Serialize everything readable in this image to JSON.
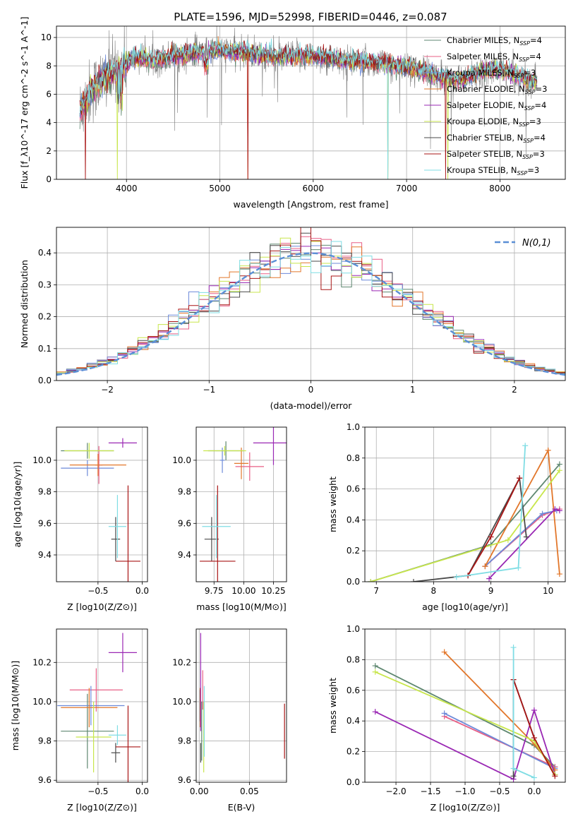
{
  "figure": {
    "title": "PLATE=1596, MJD=52998, FIBERID=0446, z=0.087"
  },
  "colors": {
    "Chabrier MILES": "#5e8770",
    "Salpeter MILES": "#e85f86",
    "Kroupa MILES": "#6d8ad9",
    "Chabrier ELODIE": "#e2772b",
    "Salpeter ELODIE": "#9a28b4",
    "Kroupa ELODIE": "#c8e64c",
    "Chabrier STELIB": "#4a4a4a",
    "Salpeter STELIB": "#a81515",
    "Kroupa STELIB": "#7fdde4",
    "gauss": "#5b8fd6",
    "grey_data": "#7f7f7f"
  },
  "chart_data": [
    {
      "id": "spectrum",
      "type": "line",
      "xlabel": "wavelength [Angstrom, rest frame]",
      "ylabel": "Flux [f_λ10^-17 erg cm^-2 s^-1 A^-1]",
      "xlim": [
        3250,
        8700
      ],
      "ylim": [
        0,
        10.8
      ],
      "xticks": [
        4000,
        5000,
        6000,
        7000,
        8000
      ],
      "yticks": [
        0,
        2,
        4,
        6,
        8,
        10
      ],
      "legend_position": "top-right",
      "legend": [
        {
          "model": "Chabrier MILES",
          "nssp": "4"
        },
        {
          "model": "Salpeter MILES",
          "nssp": "4"
        },
        {
          "model": "Kroupa MILES",
          "nssp": "3"
        },
        {
          "model": "Chabrier ELODIE",
          "nssp": "3"
        },
        {
          "model": "Salpeter ELODIE",
          "nssp": "4"
        },
        {
          "model": "Kroupa ELODIE",
          "nssp": "3"
        },
        {
          "model": "Chabrier STELIB",
          "nssp": "4"
        },
        {
          "model": "Salpeter STELIB",
          "nssp": "3"
        },
        {
          "model": "Kroupa STELIB",
          "nssp": "3"
        }
      ],
      "continuum": {
        "x": [
          3500,
          3600,
          3700,
          3800,
          3900,
          4000,
          4100,
          4300,
          4500,
          4800,
          5000,
          5300,
          5600,
          6000,
          6300,
          6600,
          6800,
          7000,
          7200,
          7400,
          7600,
          7800,
          8000,
          8200,
          8400
        ],
        "y": [
          4.8,
          6.0,
          6.8,
          7.3,
          7.5,
          8.2,
          8.6,
          8.4,
          8.7,
          9.0,
          9.1,
          8.9,
          8.6,
          8.7,
          8.4,
          8.3,
          8.1,
          7.9,
          7.6,
          7.2,
          7.0,
          7.6,
          7.7,
          7.3,
          6.8
        ]
      }
    },
    {
      "id": "residuals",
      "type": "line",
      "xlabel": "(data-model)/error",
      "ylabel": "Normed distribution",
      "xlim": [
        -2.5,
        2.5
      ],
      "ylim": [
        0,
        0.48
      ],
      "xticks": [
        -2,
        -1,
        0,
        1,
        2
      ],
      "yticks": [
        0.0,
        0.1,
        0.2,
        0.3,
        0.4
      ],
      "legend_position": "top-right",
      "legend_label": "N(0,1)",
      "bins": 50
    },
    {
      "id": "age_vs_Z",
      "type": "scatter",
      "xlabel": "Z [log10(Z/Z⊙)]",
      "ylabel": "age  [log10(age/yr)]",
      "xlim": [
        -0.97,
        0.06
      ],
      "ylim": [
        9.23,
        10.21
      ],
      "xticks": [
        -0.5,
        0.0
      ],
      "yticks": [
        9.4,
        9.6,
        9.8,
        10.0
      ],
      "points": [
        {
          "model": "Chabrier MILES",
          "x": -0.62,
          "y": 10.06,
          "xerr": 0.3,
          "yerr": 0.05
        },
        {
          "model": "Salpeter MILES",
          "x": -0.49,
          "y": 9.97,
          "xerr": 0.04,
          "yerr": 0.12
        },
        {
          "model": "Kroupa MILES",
          "x": -0.62,
          "y": 9.95,
          "xerr": 0.3,
          "yerr": 0.05
        },
        {
          "model": "Chabrier ELODIE",
          "x": -0.5,
          "y": 9.97,
          "xerr": 0.32,
          "yerr": 0.07
        },
        {
          "model": "Salpeter ELODIE",
          "x": -0.22,
          "y": 10.11,
          "xerr": 0.16,
          "yerr": 0.03
        },
        {
          "model": "Kroupa ELODIE",
          "x": -0.6,
          "y": 10.06,
          "xerr": 0.28,
          "yerr": 0.05
        },
        {
          "model": "Chabrier STELIB",
          "x": -0.3,
          "y": 9.5,
          "xerr": 0.05,
          "yerr": 0.14
        },
        {
          "model": "Salpeter STELIB",
          "x": -0.16,
          "y": 9.36,
          "xerr": 0.14,
          "yerr": 0.48
        },
        {
          "model": "Kroupa STELIB",
          "x": -0.28,
          "y": 9.58,
          "xerr": 0.1,
          "yerr": 0.2
        }
      ]
    },
    {
      "id": "age_vs_mass",
      "type": "scatter",
      "xlabel": "mass [log10(M/M⊙)]",
      "ylabel": "",
      "xlim": [
        9.6,
        10.36
      ],
      "ylim": [
        9.23,
        10.21
      ],
      "xticks": [
        9.75,
        10.0,
        10.25
      ],
      "yticks": [
        9.4,
        9.6,
        9.8,
        10.0
      ],
      "points": [
        {
          "model": "Chabrier MILES",
          "x": 9.85,
          "y": 10.06,
          "xerr": 0.15,
          "yerr": 0.06
        },
        {
          "model": "Salpeter MILES",
          "x": 10.05,
          "y": 9.96,
          "xerr": 0.12,
          "yerr": 0.09
        },
        {
          "model": "Kroupa MILES",
          "x": 9.82,
          "y": 10.0,
          "xerr": 0.02,
          "yerr": 0.08
        },
        {
          "model": "Chabrier ELODIE",
          "x": 9.98,
          "y": 9.98,
          "xerr": 0.06,
          "yerr": 0.1
        },
        {
          "model": "Salpeter ELODIE",
          "x": 10.25,
          "y": 10.11,
          "xerr": 0.17,
          "yerr": 0.14
        },
        {
          "model": "Kroupa ELODIE",
          "x": 9.84,
          "y": 10.06,
          "xerr": 0.18,
          "yerr": 0.03
        },
        {
          "model": "Chabrier STELIB",
          "x": 9.73,
          "y": 9.5,
          "xerr": 0.06,
          "yerr": 0.14
        },
        {
          "model": "Salpeter STELIB",
          "x": 9.78,
          "y": 9.36,
          "xerr": 0.15,
          "yerr": 0.48
        },
        {
          "model": "Kroupa STELIB",
          "x": 9.77,
          "y": 9.58,
          "xerr": 0.12,
          "yerr": 0.2
        }
      ]
    },
    {
      "id": "mass_weight_vs_age",
      "type": "line",
      "xlabel": "age  [log10(age/yr)]",
      "ylabel": "mass weight",
      "xlim": [
        6.8,
        10.3
      ],
      "ylim": [
        0,
        1.0
      ],
      "xticks": [
        7,
        8,
        9,
        10
      ],
      "yticks": [
        0.0,
        0.2,
        0.4,
        0.6,
        0.8,
        1.0
      ],
      "series": [
        {
          "model": "Chabrier MILES",
          "x": [
            6.9,
            9.0,
            10.2
          ],
          "y": [
            0.0,
            0.24,
            0.76
          ]
        },
        {
          "model": "Salpeter MILES",
          "x": [
            8.9,
            9.9,
            10.2
          ],
          "y": [
            0.1,
            0.43,
            0.47
          ]
        },
        {
          "model": "Kroupa MILES",
          "x": [
            8.9,
            9.9,
            10.15
          ],
          "y": [
            0.1,
            0.44,
            0.46
          ]
        },
        {
          "model": "Chabrier ELODIE",
          "x": [
            8.9,
            10.0,
            10.2
          ],
          "y": [
            0.1,
            0.85,
            0.05
          ]
        },
        {
          "model": "Salpeter ELODIE",
          "x": [
            8.97,
            10.12,
            10.2
          ],
          "y": [
            0.02,
            0.47,
            0.46
          ]
        },
        {
          "model": "Kroupa ELODIE",
          "x": [
            6.9,
            9.3,
            10.2
          ],
          "y": [
            0.0,
            0.27,
            0.72
          ]
        },
        {
          "model": "Chabrier STELIB",
          "x": [
            7.65,
            8.6,
            9.5,
            9.62
          ],
          "y": [
            0.0,
            0.04,
            0.67,
            0.29
          ]
        },
        {
          "model": "Salpeter STELIB",
          "x": [
            8.6,
            9.0,
            9.5
          ],
          "y": [
            0.04,
            0.29,
            0.67
          ]
        },
        {
          "model": "Kroupa STELIB",
          "x": [
            8.4,
            9.48,
            9.6
          ],
          "y": [
            0.03,
            0.09,
            0.88
          ]
        }
      ]
    },
    {
      "id": "mass_vs_Z",
      "type": "scatter",
      "xlabel": "Z [log10(Z/Z⊙)]",
      "ylabel": "mass [log10(M/M⊙)]",
      "xlim": [
        -0.97,
        0.06
      ],
      "ylim": [
        9.59,
        10.37
      ],
      "xticks": [
        -0.5,
        0.0
      ],
      "yticks": [
        9.6,
        9.8,
        10.0,
        10.2
      ],
      "points": [
        {
          "model": "Chabrier MILES",
          "x": -0.62,
          "y": 9.85,
          "xerr": 0.3,
          "yerr": 0.19
        },
        {
          "model": "Salpeter MILES",
          "x": -0.52,
          "y": 10.06,
          "xerr": 0.3,
          "yerr": 0.11
        },
        {
          "model": "Kroupa MILES",
          "x": -0.58,
          "y": 9.98,
          "xerr": 0.38,
          "yerr": 0.1
        },
        {
          "model": "Chabrier ELODIE",
          "x": -0.6,
          "y": 9.97,
          "xerr": 0.32,
          "yerr": 0.1
        },
        {
          "model": "Salpeter ELODIE",
          "x": -0.22,
          "y": 10.25,
          "xerr": 0.16,
          "yerr": 0.1
        },
        {
          "model": "Kroupa ELODIE",
          "x": -0.55,
          "y": 9.82,
          "xerr": 0.2,
          "yerr": 0.18
        },
        {
          "model": "Chabrier STELIB",
          "x": -0.3,
          "y": 9.74,
          "xerr": 0.05,
          "yerr": 0.05
        },
        {
          "model": "Salpeter STELIB",
          "x": -0.16,
          "y": 9.77,
          "xerr": 0.14,
          "yerr": 0.21
        },
        {
          "model": "Kroupa STELIB",
          "x": -0.28,
          "y": 9.83,
          "xerr": 0.1,
          "yerr": 0.05
        }
      ]
    },
    {
      "id": "mass_vs_ebv",
      "type": "scatter",
      "xlabel": "E(B-V)",
      "ylabel": "",
      "xlim": [
        -0.003,
        0.087
      ],
      "ylim": [
        9.59,
        10.37
      ],
      "xticks": [
        0.0,
        0.05
      ],
      "yticks": [
        9.6,
        9.8,
        10.0,
        10.2
      ],
      "points": [
        {
          "model": "Chabrier MILES",
          "x": 0.0025,
          "y": 9.85,
          "yerr": 0.15
        },
        {
          "model": "Salpeter MILES",
          "x": 0.0035,
          "y": 10.06,
          "yerr": 0.1
        },
        {
          "model": "Kroupa MILES",
          "x": 0.0008,
          "y": 9.98,
          "yerr": 0.08
        },
        {
          "model": "Chabrier ELODIE",
          "x": 0.001,
          "y": 9.97,
          "yerr": 0.1
        },
        {
          "model": "Salpeter ELODIE",
          "x": 0.0015,
          "y": 10.1,
          "yerr": 0.25
        },
        {
          "model": "Kroupa ELODIE",
          "x": 0.0045,
          "y": 9.82,
          "yerr": 0.18
        },
        {
          "model": "Chabrier STELIB",
          "x": 0.0015,
          "y": 9.74,
          "yerr": 0.05
        },
        {
          "model": "Salpeter STELIB",
          "x": 0.085,
          "y": 9.85,
          "yerr": 0.14
        },
        {
          "model": "Kroupa STELIB",
          "x": 0.005,
          "y": 9.9,
          "yerr": 0.18
        }
      ]
    },
    {
      "id": "mass_weight_vs_Z",
      "type": "line",
      "xlabel": "Z [log10(Z/Z⊙)]",
      "ylabel": "mass weight",
      "xlim": [
        -2.45,
        0.45
      ],
      "ylim": [
        0,
        1.0
      ],
      "xticks": [
        -2.0,
        -1.5,
        -1.0,
        -0.5,
        0.0
      ],
      "yticks": [
        0.0,
        0.2,
        0.4,
        0.6,
        0.8,
        1.0
      ],
      "series": [
        {
          "model": "Chabrier MILES",
          "x": [
            -2.3,
            0.0,
            0.3
          ],
          "y": [
            0.76,
            0.24,
            0.1
          ]
        },
        {
          "model": "Salpeter MILES",
          "x": [
            -1.3,
            0.3
          ],
          "y": [
            0.43,
            0.1
          ]
        },
        {
          "model": "Kroupa MILES",
          "x": [
            -1.3,
            0.3
          ],
          "y": [
            0.45,
            0.09
          ]
        },
        {
          "model": "Chabrier ELODIE",
          "x": [
            -1.3,
            0.0,
            0.3
          ],
          "y": [
            0.85,
            0.25,
            0.08
          ]
        },
        {
          "model": "Salpeter ELODIE",
          "x": [
            -2.3,
            -0.3,
            0.0,
            0.3
          ],
          "y": [
            0.46,
            0.02,
            0.47,
            0.05
          ]
        },
        {
          "model": "Kroupa ELODIE",
          "x": [
            -2.3,
            0.0,
            0.3
          ],
          "y": [
            0.72,
            0.27,
            0.05
          ]
        },
        {
          "model": "Chabrier STELIB",
          "x": [
            -0.3,
            -0.3,
            0.0
          ],
          "y": [
            0.04,
            0.67,
            0.29
          ]
        },
        {
          "model": "Salpeter STELIB",
          "x": [
            -0.3,
            0.0,
            0.3
          ],
          "y": [
            0.67,
            0.29,
            0.04
          ]
        },
        {
          "model": "Kroupa STELIB",
          "x": [
            -0.3,
            -0.3,
            0.0
          ],
          "y": [
            0.88,
            0.09,
            0.03
          ]
        }
      ]
    }
  ]
}
